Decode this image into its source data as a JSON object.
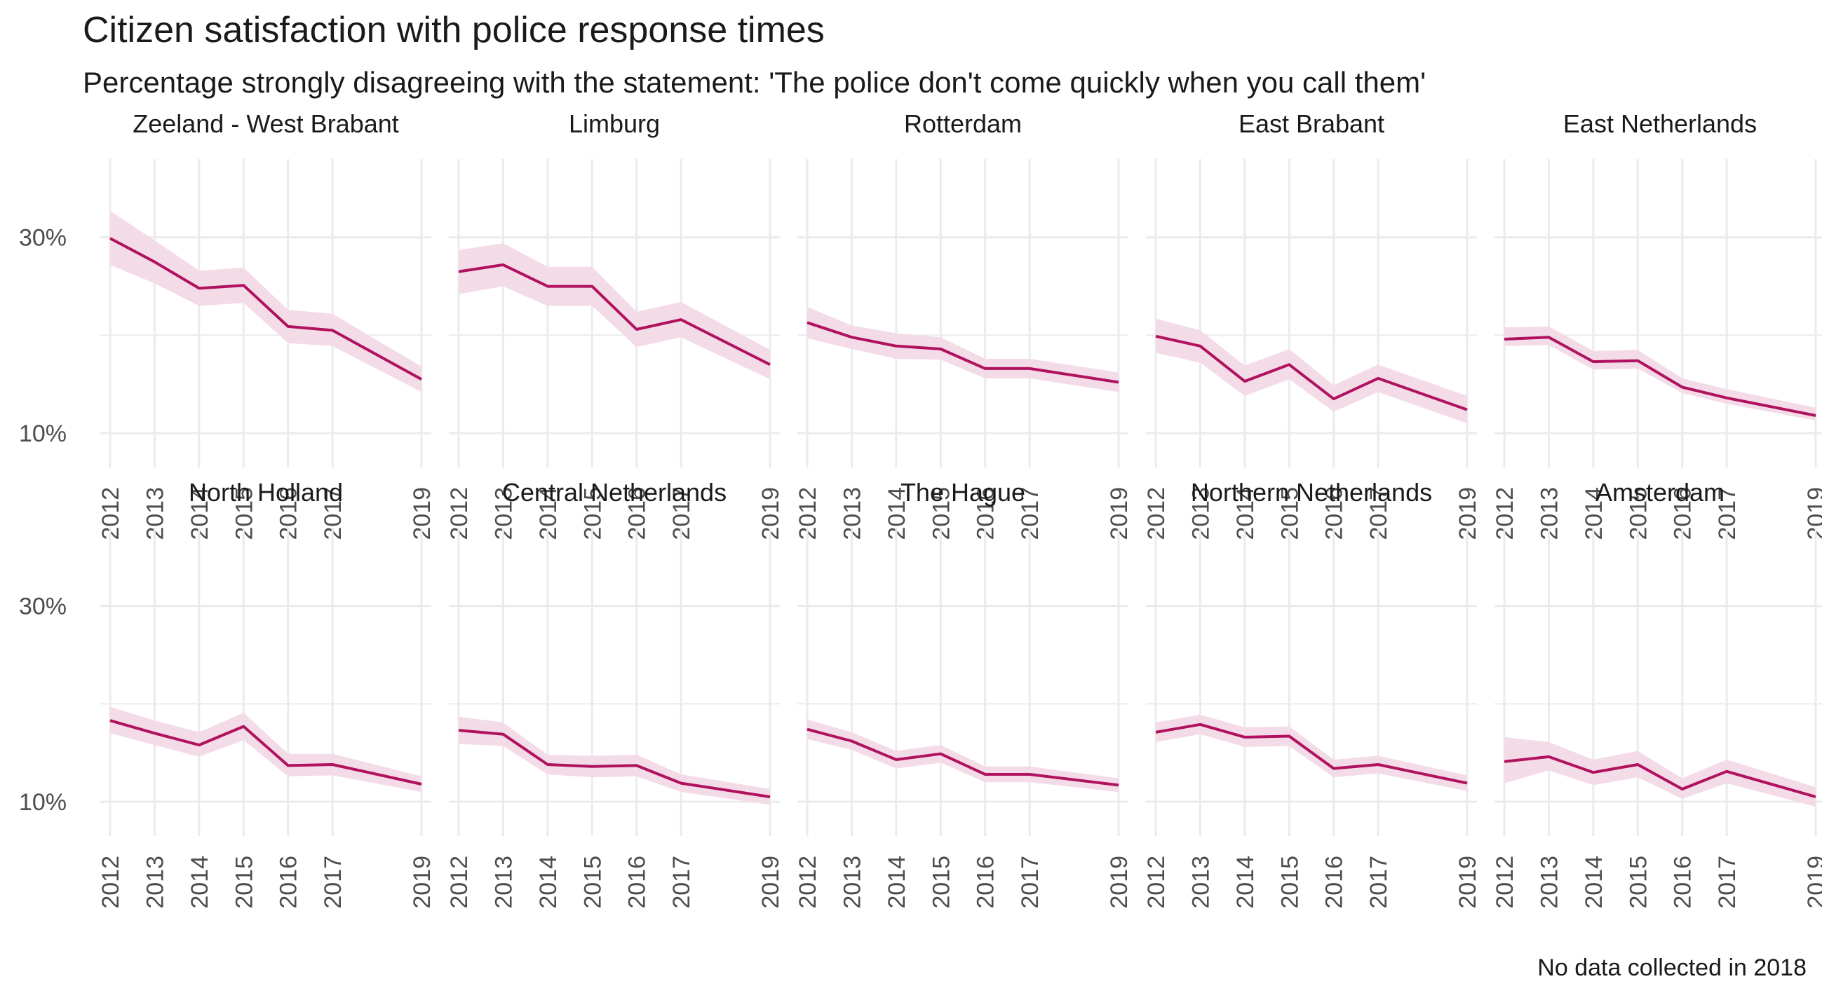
{
  "chart_data": {
    "type": "line",
    "layout": "small-multiples",
    "title": "Citizen satisfaction with police response times",
    "subtitle": "Percentage strongly disagreeing with the statement: 'The police don't come quickly when you call them'",
    "caption": "No data collected in 2018",
    "x": [
      2012,
      2013,
      2014,
      2015,
      2016,
      2017,
      2019
    ],
    "y_ticks": [
      10,
      30
    ],
    "y_tick_labels": [
      "10%",
      "30%"
    ],
    "ylim": [
      6.5,
      38
    ],
    "grid": true,
    "legend": "none",
    "colors": {
      "line": "#b0125e",
      "band": "#f3dbe8",
      "grid": "#ebebeb",
      "text": "#1a1a1a",
      "axis_text": "#4d4d4d"
    },
    "panels": [
      {
        "name": "Zeeland - West Brabant",
        "values": [
          29.9,
          27.5,
          24.8,
          25.1,
          20.9,
          20.5,
          15.5
        ],
        "lower": [
          27.2,
          25.3,
          23.0,
          23.3,
          19.2,
          18.9,
          14.2
        ],
        "upper": [
          32.7,
          29.7,
          26.6,
          26.9,
          22.6,
          22.2,
          16.8
        ]
      },
      {
        "name": "Limburg",
        "values": [
          26.5,
          27.2,
          25.0,
          25.0,
          20.6,
          21.6,
          17.0
        ],
        "lower": [
          24.2,
          25.0,
          23.0,
          23.0,
          18.8,
          19.8,
          15.5
        ],
        "upper": [
          28.7,
          29.4,
          27.0,
          27.0,
          22.4,
          23.4,
          18.5
        ]
      },
      {
        "name": "Rotterdam",
        "values": [
          21.3,
          19.8,
          18.9,
          18.6,
          16.6,
          16.6,
          15.2
        ],
        "lower": [
          19.7,
          18.6,
          17.6,
          17.5,
          15.6,
          15.6,
          14.2
        ],
        "upper": [
          22.9,
          21.0,
          20.2,
          19.8,
          17.6,
          17.6,
          16.2
        ]
      },
      {
        "name": "East Brabant",
        "values": [
          19.9,
          18.9,
          15.3,
          17.0,
          13.5,
          15.6,
          12.4
        ],
        "lower": [
          18.2,
          17.2,
          13.8,
          15.5,
          12.2,
          14.2,
          11.0
        ],
        "upper": [
          21.7,
          20.5,
          16.9,
          18.6,
          14.9,
          17.0,
          13.8
        ]
      },
      {
        "name": "East Netherlands",
        "values": [
          19.6,
          19.8,
          17.3,
          17.4,
          14.7,
          13.6,
          11.8
        ],
        "lower": [
          18.9,
          19.0,
          16.5,
          16.6,
          14.1,
          13.0,
          11.3
        ],
        "upper": [
          20.8,
          20.9,
          18.4,
          18.5,
          15.6,
          14.5,
          12.6
        ]
      },
      {
        "name": "North Holland",
        "values": [
          18.3,
          17.0,
          15.8,
          17.7,
          13.7,
          13.8,
          11.8
        ],
        "lower": [
          17.0,
          15.8,
          14.6,
          16.3,
          12.6,
          12.7,
          11.0
        ],
        "upper": [
          19.7,
          18.3,
          17.1,
          19.1,
          14.9,
          14.9,
          12.6
        ]
      },
      {
        "name": "Central Netherlands",
        "values": [
          17.3,
          16.9,
          13.8,
          13.6,
          13.7,
          11.9,
          10.5
        ],
        "lower": [
          15.9,
          15.7,
          12.8,
          12.5,
          12.6,
          11.0,
          9.7
        ],
        "upper": [
          18.7,
          18.1,
          14.8,
          14.7,
          14.8,
          12.8,
          11.3
        ]
      },
      {
        "name": "The Hague",
        "values": [
          17.4,
          16.2,
          14.3,
          14.9,
          12.8,
          12.8,
          11.7
        ],
        "lower": [
          16.4,
          15.3,
          13.4,
          14.0,
          12.0,
          12.0,
          11.0
        ],
        "upper": [
          18.4,
          17.1,
          15.2,
          15.8,
          13.6,
          13.6,
          12.4
        ]
      },
      {
        "name": "Northern Netherlands",
        "values": [
          17.1,
          17.9,
          16.6,
          16.7,
          13.4,
          13.8,
          11.9
        ],
        "lower": [
          16.1,
          16.9,
          15.6,
          15.7,
          12.5,
          12.9,
          11.1
        ],
        "upper": [
          18.1,
          18.9,
          17.6,
          17.7,
          14.3,
          14.7,
          12.7
        ]
      },
      {
        "name": "Amsterdam",
        "values": [
          14.1,
          14.6,
          13.0,
          13.8,
          11.3,
          13.1,
          10.5
        ],
        "lower": [
          11.9,
          13.2,
          11.7,
          12.5,
          10.3,
          11.9,
          9.5
        ],
        "upper": [
          16.6,
          16.1,
          14.3,
          15.2,
          12.4,
          14.3,
          11.5
        ]
      }
    ]
  }
}
